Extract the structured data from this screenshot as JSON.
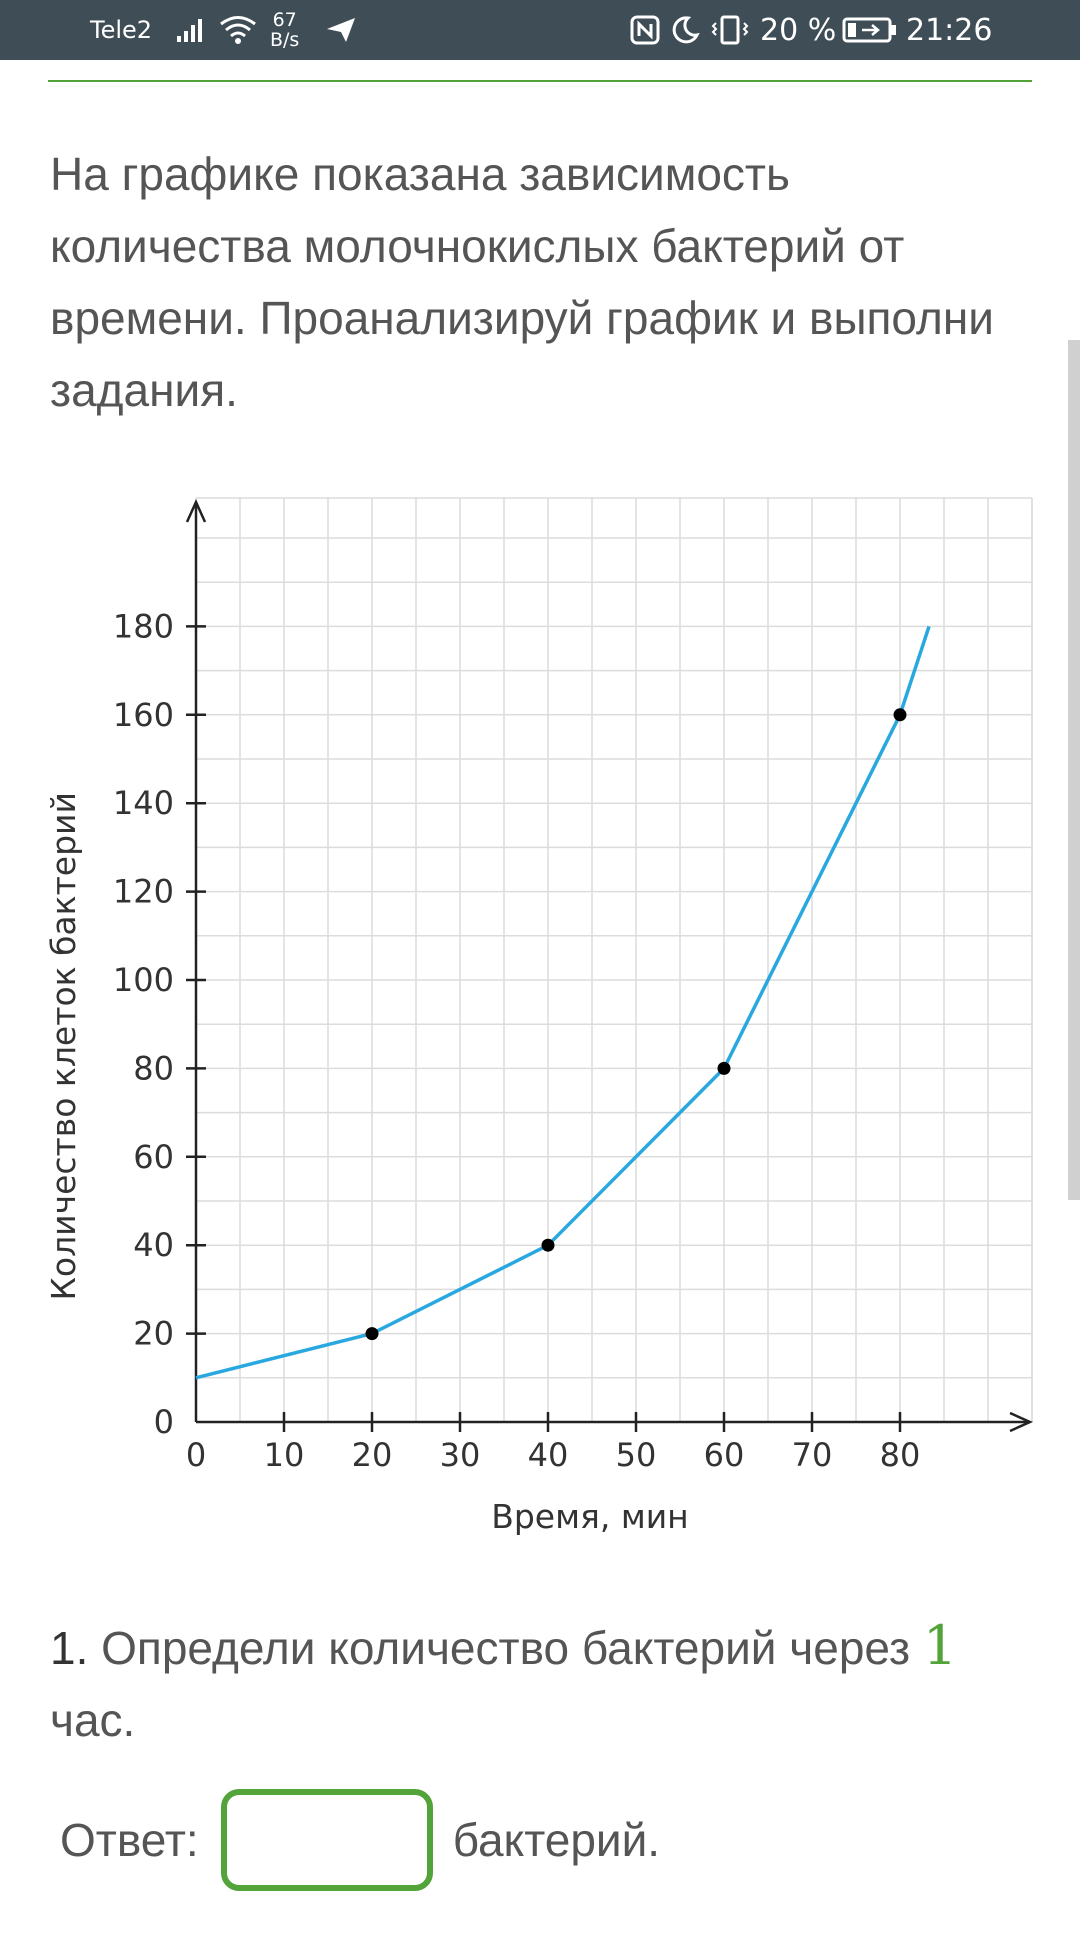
{
  "status_bar": {
    "carrier": "Tele2",
    "speed_value": "67",
    "speed_unit": "B/s",
    "battery_percent": "20 %",
    "time": "21:26",
    "icons": [
      "signal-icon",
      "wifi-icon",
      "send-icon",
      "nfc-icon",
      "moon-icon",
      "vibrate-icon",
      "battery-charging-icon"
    ]
  },
  "task": {
    "intro": "На графике показана зависимость количества молочнокислых бактерий от времени. Проанализируй график и выполни задания.",
    "question_number": "1.",
    "question_text_before": "Определи количество бактерий через",
    "question_hours": "1",
    "question_text_after": "час.",
    "answer_label": "Ответ:",
    "answer_value": "",
    "answer_unit": "бактерий."
  },
  "colors": {
    "accent_green": "#53a33b",
    "curve_blue": "#29a8df",
    "status_bar_bg": "#3f4d56"
  },
  "chart_data": {
    "type": "line",
    "xlabel": "Время, мин",
    "ylabel": "Количество клеток бактерий",
    "x_ticks": [
      "0",
      "10",
      "20",
      "30",
      "40",
      "50",
      "60",
      "70",
      "80"
    ],
    "y_ticks": [
      "0",
      "20",
      "40",
      "60",
      "80",
      "100",
      "120",
      "140",
      "160",
      "180"
    ],
    "xlim": [
      0,
      95
    ],
    "ylim": [
      0,
      210
    ],
    "grid": true,
    "series": [
      {
        "x": [
          0,
          20,
          40,
          60,
          80,
          83.3
        ],
        "y": [
          10,
          20,
          40,
          80,
          160,
          180
        ]
      }
    ],
    "markers": [
      {
        "x": 20,
        "y": 20
      },
      {
        "x": 40,
        "y": 40
      },
      {
        "x": 60,
        "y": 80
      },
      {
        "x": 80,
        "y": 160
      }
    ]
  }
}
